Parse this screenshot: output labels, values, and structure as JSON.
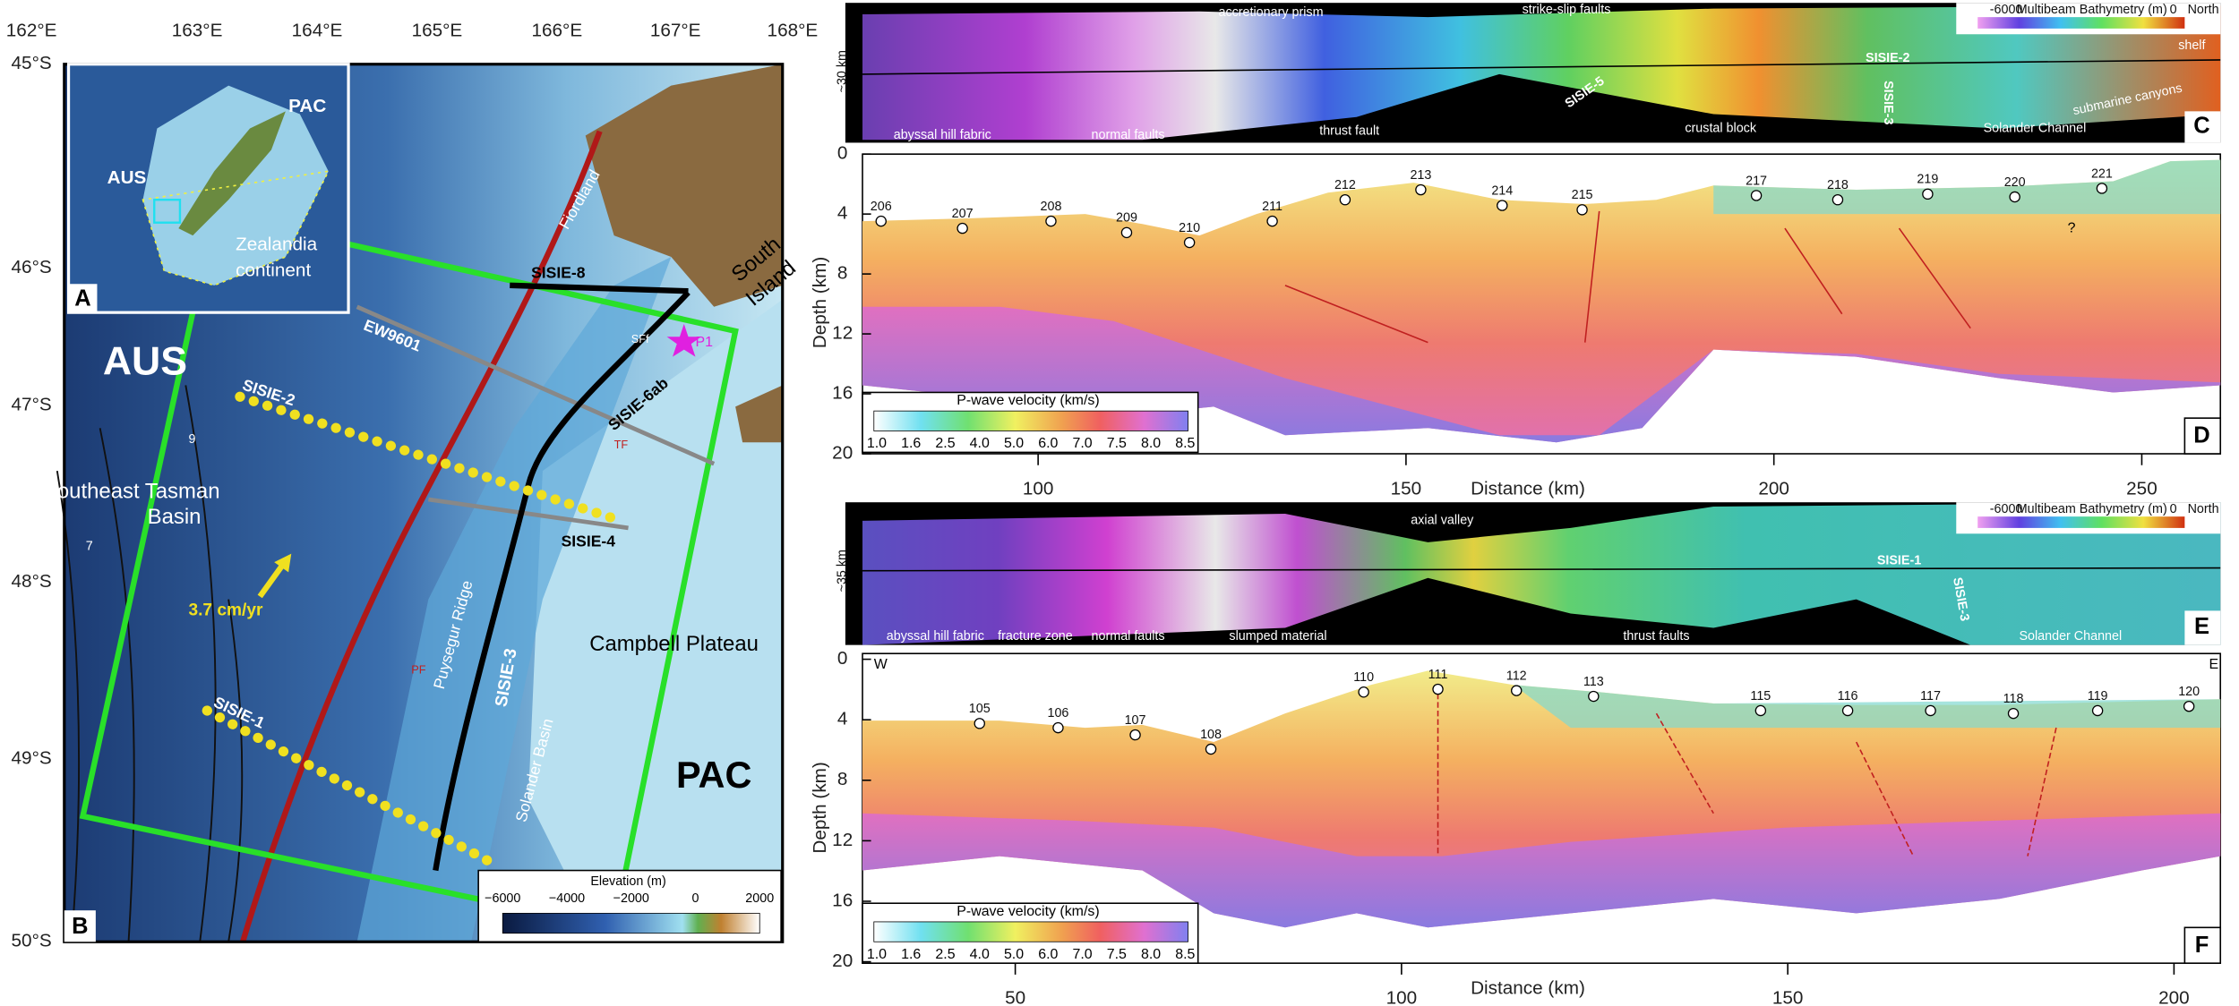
{
  "map": {
    "lon_ticks": [
      "162°E",
      "163°E",
      "164°E",
      "165°E",
      "166°E",
      "167°E",
      "168°E"
    ],
    "lat_ticks": [
      "45°S",
      "46°S",
      "47°S",
      "48°S",
      "49°S",
      "50°S"
    ],
    "panel": "B",
    "labels": {
      "aus": "AUS",
      "basin1": "Southeast Tasman",
      "basin2": "Basin",
      "nine": "9",
      "seven": "7",
      "rate": "3.7 cm/yr",
      "sisie2": "SISIE-2",
      "ew": "EW9601",
      "sisie8": "SISIE-8",
      "sisie6": "SISIE-6ab",
      "south": "South",
      "island": "Island",
      "fiord": "Fiordland",
      "p1": "P1",
      "sff": "SFf",
      "tf": "TF",
      "pf": "PF",
      "ridge": "Puysegur Ridge",
      "sisie3": "SISIE-3",
      "solander": "Solander Basin",
      "sisie4": "SISIE-4",
      "campbell": "Campbell Plateau",
      "pac": "PAC",
      "sisie1": "SISIE-1"
    },
    "inset": {
      "panel": "A",
      "pac": "PAC",
      "aus": "AUS",
      "z1": "Zealandia",
      "z2": "continent"
    },
    "colorbar": {
      "title": "Elevation (m)",
      "ticks": [
        "−6000",
        "−4000",
        "−2000",
        "0",
        "2000"
      ]
    }
  },
  "panel_c": {
    "panel": "C",
    "width": "~30 km",
    "labels": [
      "accretionary prism",
      "strike-slip faults",
      "abyssal hill fabric",
      "normal faults",
      "thrust fault",
      "SISIE-5",
      "crustal block",
      "SISIE-2",
      "SISIE-3",
      "Solander Channel",
      "submarine canyons",
      "shelf"
    ],
    "colorbar": {
      "min": "-6000",
      "title": "Multibeam Bathymetry (m)",
      "max": "0",
      "north": "North"
    }
  },
  "panel_d": {
    "panel": "D",
    "ylabel": "Depth (km)",
    "xlabel": "Distance (km)",
    "yticks": [
      0,
      4,
      8,
      12,
      16,
      20
    ],
    "xticks": [
      100,
      150,
      200,
      250
    ],
    "stations": [
      "206",
      "207",
      "208",
      "209",
      "210",
      "211",
      "212",
      "213",
      "214",
      "215",
      "217",
      "218",
      "219",
      "220",
      "221"
    ],
    "q": "?",
    "colorbar": {
      "title": "P-wave velocity (km/s)",
      "ticks": [
        "1.0",
        "1.6",
        "2.5",
        "4.0",
        "5.0",
        "6.0",
        "7.0",
        "7.5",
        "8.0",
        "8.5"
      ]
    }
  },
  "panel_e": {
    "panel": "E",
    "width": "~35 km",
    "labels": [
      "axial valley",
      "abyssal hill fabric",
      "fracture zone",
      "normal faults",
      "slumped material",
      "thrust faults",
      "SISIE-1",
      "SISIE-3",
      "Solander Channel"
    ],
    "colorbar": {
      "min": "-6000",
      "title": "Multibeam Bathymetry (m)",
      "max": "0",
      "north": "North"
    }
  },
  "panel_f": {
    "panel": "F",
    "west": "W",
    "east": "E",
    "ylabel": "Depth (km)",
    "xlabel": "Distance (km)",
    "yticks": [
      0,
      4,
      8,
      12,
      16,
      20
    ],
    "xticks": [
      50,
      100,
      150,
      200
    ],
    "stations": [
      "105",
      "106",
      "107",
      "108",
      "110",
      "111",
      "112",
      "113",
      "115",
      "116",
      "117",
      "118",
      "119",
      "120"
    ],
    "colorbar": {
      "title": "P-wave velocity (km/s)",
      "ticks": [
        "1.0",
        "1.6",
        "2.5",
        "4.0",
        "5.0",
        "6.0",
        "7.0",
        "7.5",
        "8.0",
        "8.5"
      ]
    }
  }
}
